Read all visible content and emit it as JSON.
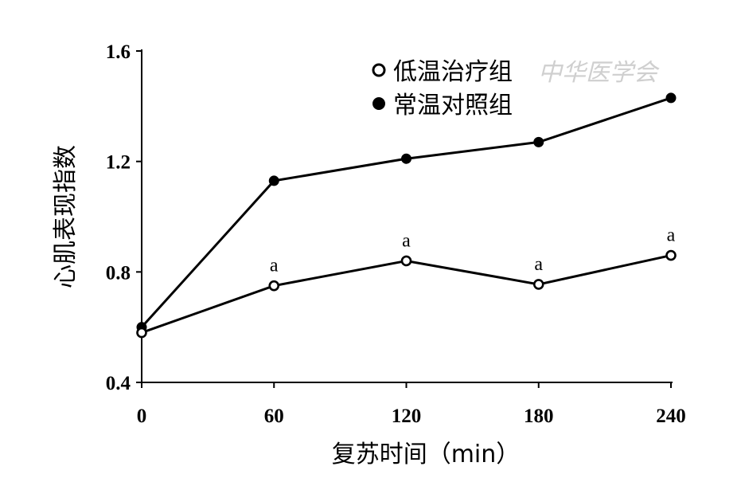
{
  "chart_data": {
    "type": "line",
    "xlabel": "复苏时间（min）",
    "ylabel": "心肌表现指数",
    "x": [
      0,
      60,
      120,
      180,
      240
    ],
    "x_tick_labels": [
      "0",
      "60",
      "120",
      "180",
      "240"
    ],
    "xlim": [
      0,
      240
    ],
    "ylim": [
      0.4,
      1.6
    ],
    "y_ticks": [
      0.4,
      0.8,
      1.2,
      1.6
    ],
    "y_tick_labels": [
      "0.4",
      "0.8",
      "1.2",
      "1.6"
    ],
    "grid": false,
    "legend_position": "top-right",
    "series": [
      {
        "name": "低温治疗组",
        "marker": "hollow-circle",
        "color": "#000000",
        "values": [
          0.58,
          0.75,
          0.84,
          0.755,
          0.86
        ],
        "annotations": [
          "",
          "a",
          "a",
          "a",
          "a"
        ]
      },
      {
        "name": "常温对照组",
        "marker": "filled-circle",
        "color": "#000000",
        "values": [
          0.6,
          1.13,
          1.21,
          1.27,
          1.43
        ],
        "annotations": [
          "",
          "",
          "",
          "",
          ""
        ]
      }
    ],
    "watermark": "中华医学会"
  }
}
